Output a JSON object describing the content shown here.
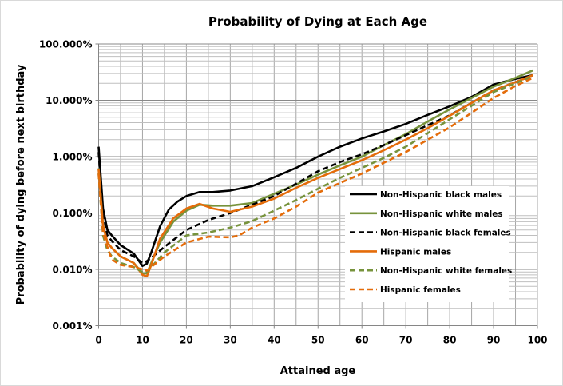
{
  "chart_data": {
    "type": "line",
    "title": "Probability of Dying at Each Age",
    "xlabel": "Attained age",
    "ylabel": "Probability of dying before next birthday",
    "xlim": [
      0,
      100
    ],
    "ylim": [
      0.001,
      100
    ],
    "yscale": "log",
    "y_unit": "percent",
    "x_ticks": [
      0,
      10,
      20,
      30,
      40,
      50,
      60,
      70,
      80,
      90,
      100
    ],
    "y_ticks": [
      "0.001%",
      "0.010%",
      "0.100%",
      "1.000%",
      "10.000%",
      "100.000%"
    ],
    "grid": true,
    "legend_position": "right",
    "series": [
      {
        "name": "Non-Hispanic black males",
        "color": "#000000",
        "dash": false,
        "x": [
          0,
          1,
          2,
          3,
          5,
          8,
          10,
          11,
          12,
          14,
          16,
          18,
          20,
          23,
          26,
          30,
          35,
          40,
          45,
          50,
          55,
          60,
          65,
          70,
          75,
          80,
          85,
          90,
          95,
          99
        ],
        "y": [
          1.5,
          0.12,
          0.05,
          0.04,
          0.027,
          0.019,
          0.0115,
          0.0126,
          0.02,
          0.058,
          0.115,
          0.16,
          0.2,
          0.235,
          0.235,
          0.25,
          0.3,
          0.43,
          0.63,
          1.0,
          1.5,
          2.1,
          2.8,
          3.8,
          5.5,
          7.8,
          11.5,
          19,
          24,
          28
        ]
      },
      {
        "name": "Non-Hispanic white males",
        "color": "#77933c",
        "dash": false,
        "x": [
          0,
          1,
          2,
          3,
          5,
          8,
          10,
          11,
          12,
          14,
          17,
          20,
          23,
          26,
          30,
          35,
          40,
          45,
          50,
          55,
          60,
          65,
          70,
          75,
          80,
          85,
          90,
          95,
          99
        ],
        "y": [
          0.62,
          0.06,
          0.03,
          0.024,
          0.017,
          0.013,
          0.0085,
          0.0085,
          0.013,
          0.03,
          0.07,
          0.11,
          0.14,
          0.135,
          0.135,
          0.15,
          0.22,
          0.32,
          0.48,
          0.7,
          1.0,
          1.6,
          2.5,
          4.2,
          6.9,
          11,
          17.5,
          25,
          34
        ]
      },
      {
        "name": "Non-Hispanic black females",
        "color": "#000000",
        "dash": true,
        "x": [
          0,
          1,
          2,
          3,
          5,
          8,
          10,
          11,
          12,
          15,
          20,
          25,
          30,
          35,
          40,
          45,
          50,
          55,
          60,
          65,
          70,
          75,
          80,
          85,
          90,
          95,
          99
        ],
        "y": [
          1.2,
          0.1,
          0.04,
          0.032,
          0.022,
          0.017,
          0.013,
          0.014,
          0.016,
          0.025,
          0.05,
          0.075,
          0.1,
          0.14,
          0.2,
          0.33,
          0.55,
          0.8,
          1.1,
          1.6,
          2.4,
          3.6,
          5.4,
          9,
          15,
          21,
          28
        ]
      },
      {
        "name": "Hispanic males",
        "color": "#e46c0a",
        "dash": false,
        "x": [
          0,
          1,
          2,
          3,
          5,
          8,
          10,
          11,
          12,
          14,
          17,
          20,
          23,
          26,
          30,
          35,
          40,
          45,
          50,
          55,
          60,
          65,
          70,
          75,
          80,
          85,
          90,
          95,
          99
        ],
        "y": [
          0.6,
          0.06,
          0.03,
          0.024,
          0.017,
          0.013,
          0.008,
          0.0075,
          0.012,
          0.035,
          0.08,
          0.12,
          0.145,
          0.12,
          0.105,
          0.13,
          0.18,
          0.28,
          0.42,
          0.6,
          0.86,
          1.3,
          2.0,
          3.2,
          5.3,
          9,
          15,
          21,
          28
        ]
      },
      {
        "name": "Non-Hispanic white females",
        "color": "#77933c",
        "dash": true,
        "x": [
          0,
          1,
          2,
          3,
          5,
          8,
          10,
          11,
          12,
          15,
          20,
          25,
          30,
          35,
          40,
          45,
          50,
          55,
          60,
          65,
          70,
          75,
          80,
          85,
          90,
          95,
          99
        ],
        "y": [
          0.5,
          0.04,
          0.022,
          0.017,
          0.013,
          0.011,
          0.009,
          0.009,
          0.011,
          0.02,
          0.04,
          0.045,
          0.055,
          0.072,
          0.11,
          0.17,
          0.27,
          0.42,
          0.63,
          0.95,
          1.5,
          2.6,
          4.6,
          8,
          14,
          20,
          27
        ]
      },
      {
        "name": "Hispanic females",
        "color": "#e46c0a",
        "dash": true,
        "x": [
          0,
          1,
          2,
          3,
          5,
          8,
          10,
          11,
          12,
          15,
          20,
          25,
          30,
          32,
          35,
          40,
          45,
          50,
          55,
          60,
          65,
          70,
          75,
          80,
          85,
          90,
          95,
          99
        ],
        "y": [
          0.5,
          0.045,
          0.025,
          0.015,
          0.012,
          0.011,
          0.01,
          0.0095,
          0.011,
          0.017,
          0.03,
          0.038,
          0.037,
          0.04,
          0.055,
          0.08,
          0.13,
          0.23,
          0.34,
          0.5,
          0.78,
          1.2,
          2.0,
          3.3,
          6,
          11,
          18,
          25
        ]
      }
    ]
  }
}
